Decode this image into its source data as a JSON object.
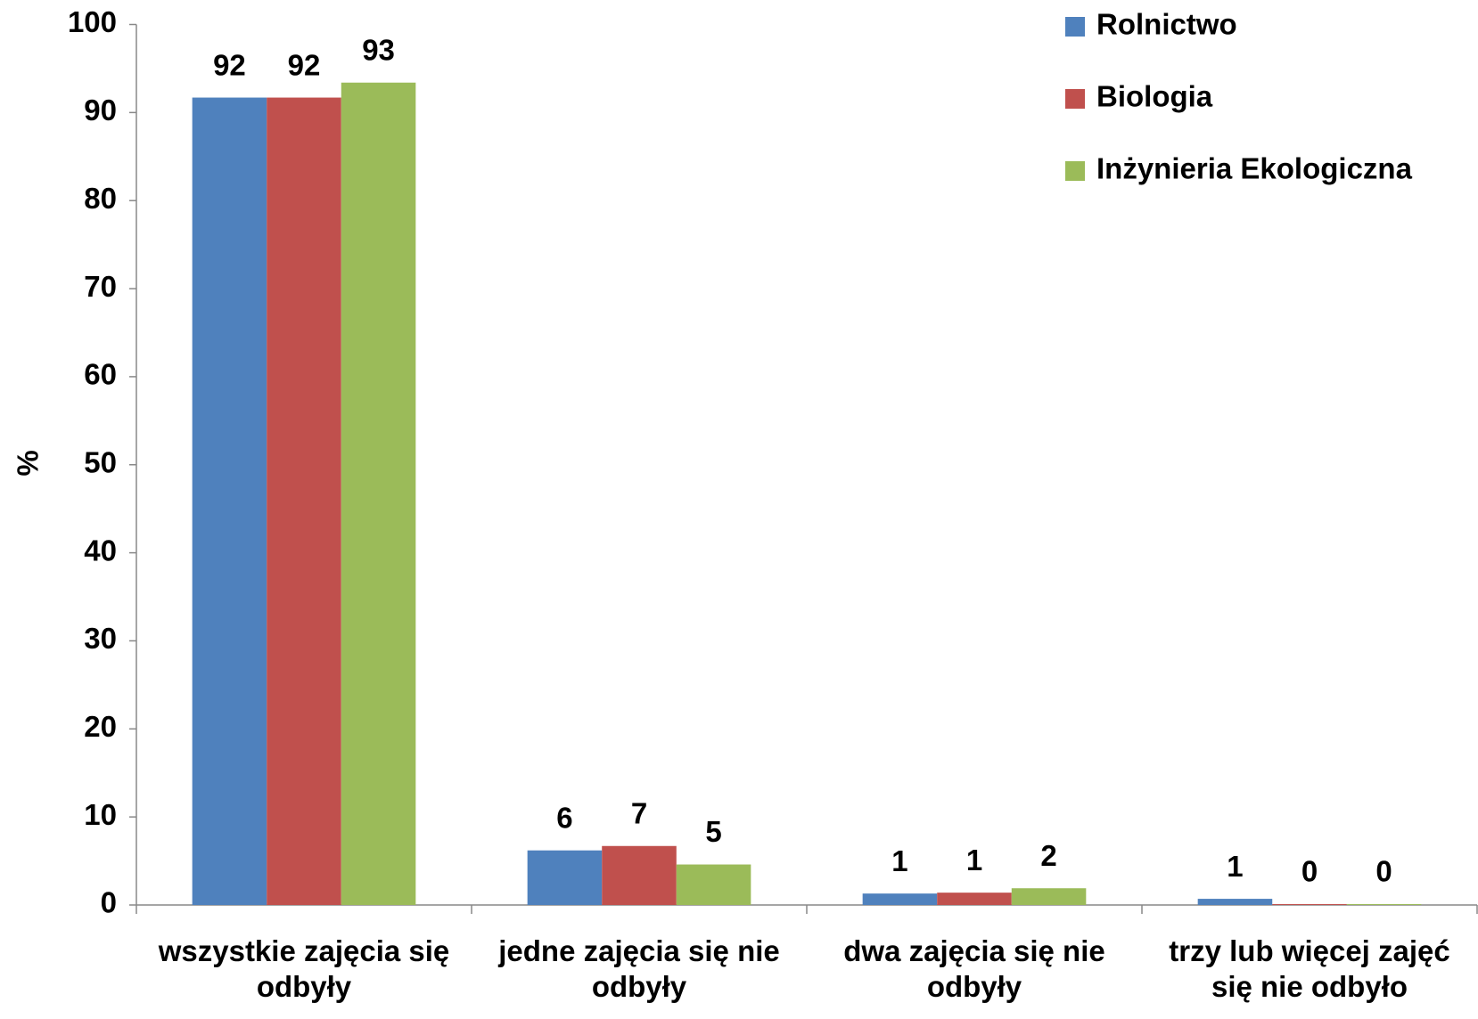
{
  "chart_data": {
    "type": "bar",
    "ylabel": "%",
    "categories": [
      "wszystkie zajęcia się odbyły",
      "jedne zajęcia się nie odbyły",
      "dwa zajęcia się nie odbyły",
      "trzy lub więcej zajęć się nie odbyło"
    ],
    "series": [
      {
        "name": "Rolnictwo",
        "color": "#4f81bd",
        "values": [
          91.7,
          6.2,
          1.3,
          0.7
        ],
        "value_labels": [
          "92",
          "6",
          "1",
          "1"
        ]
      },
      {
        "name": "Biologia",
        "color": "#c0504d",
        "values": [
          91.7,
          6.7,
          1.4,
          0.1
        ],
        "value_labels": [
          "92",
          "7",
          "1",
          "0"
        ]
      },
      {
        "name": "Inżynieria Ekologiczna",
        "color": "#9bbb59",
        "values": [
          93.4,
          4.6,
          1.9,
          0.1
        ],
        "value_labels": [
          "93",
          "5",
          "2",
          "0"
        ]
      }
    ],
    "ylim": [
      0,
      100
    ],
    "yticks": [
      0,
      10,
      20,
      30,
      40,
      50,
      60,
      70,
      80,
      90,
      100
    ],
    "grid": false,
    "legend": "top-right"
  }
}
